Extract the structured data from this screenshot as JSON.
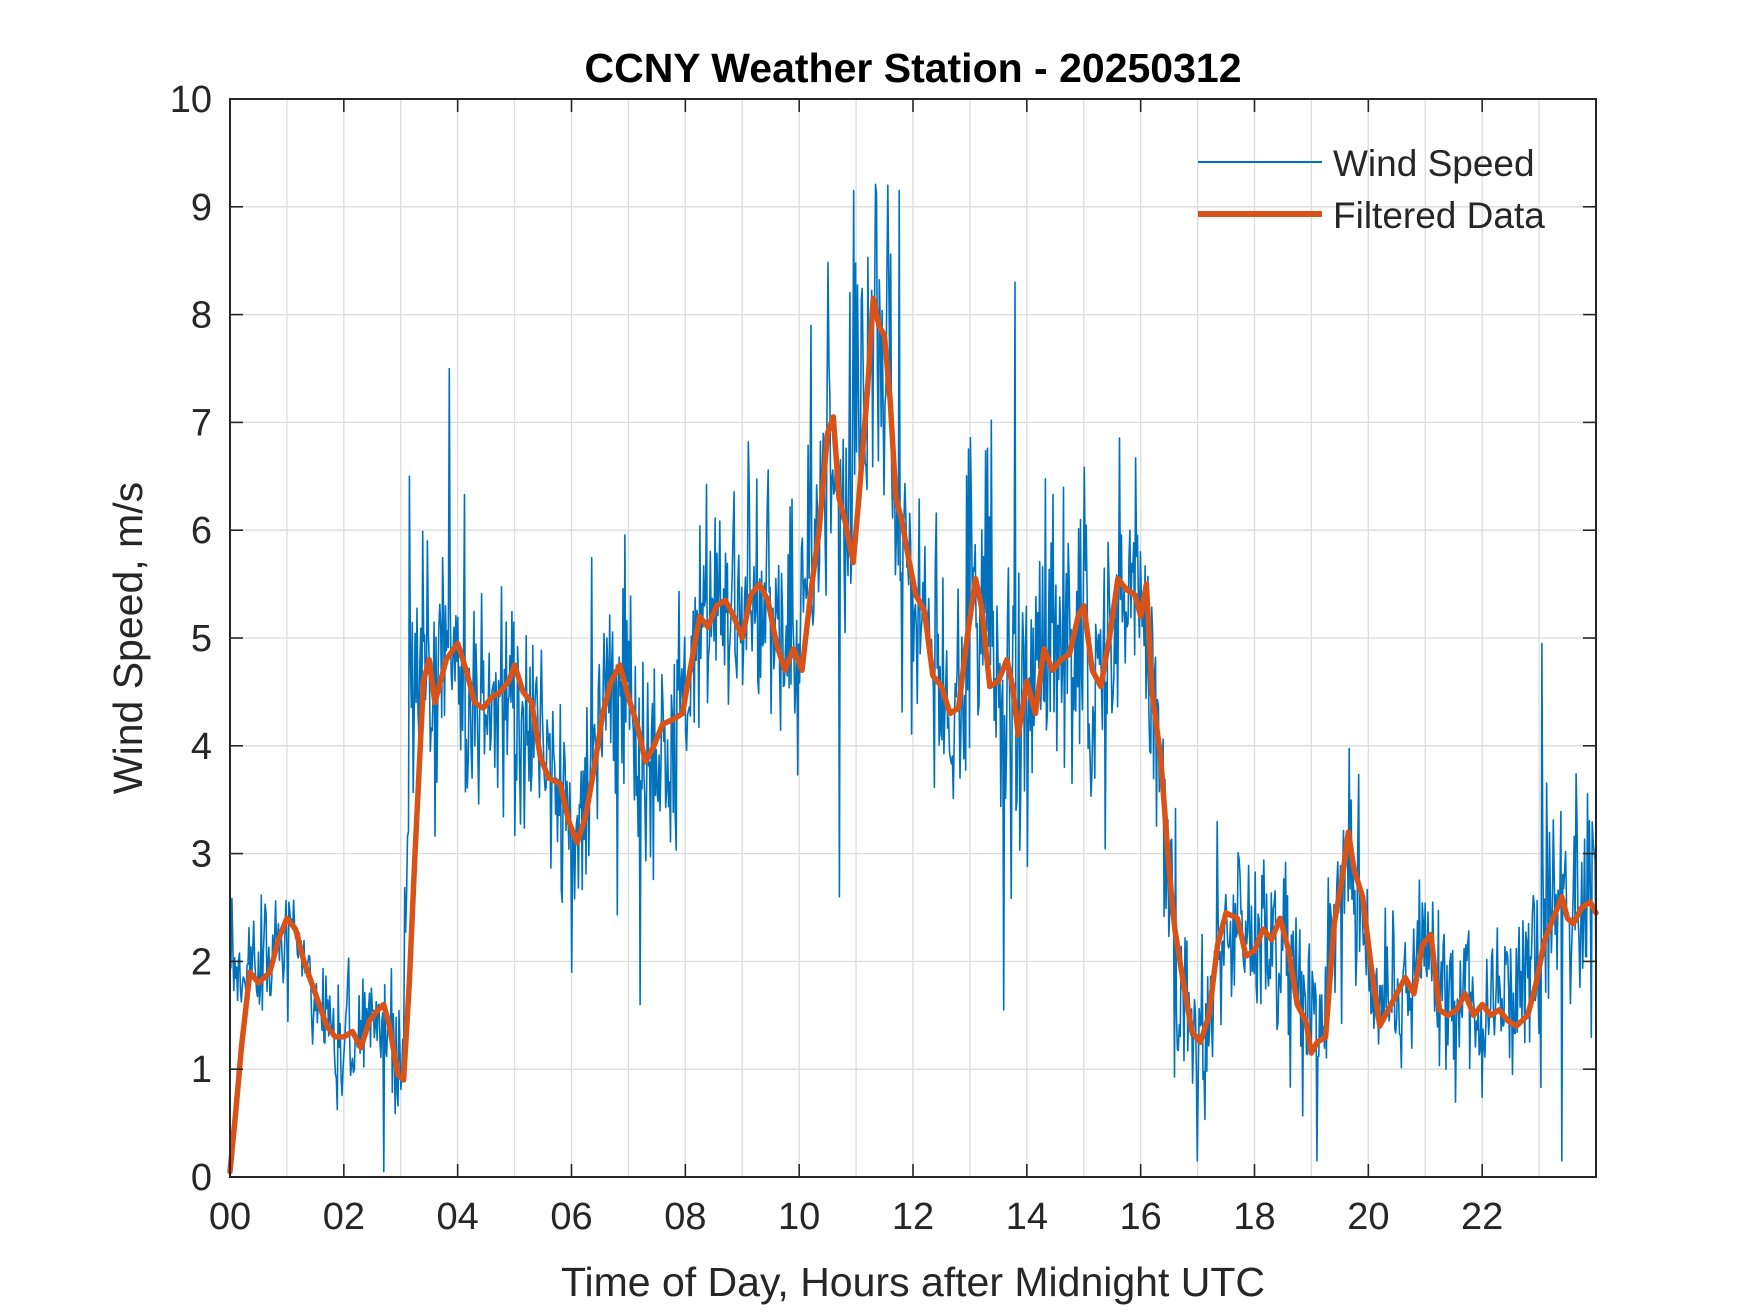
{
  "chart_data": {
    "type": "line",
    "title": "CCNY Weather Station - 20250312",
    "xlabel": "Time of Day, Hours after Midnight UTC",
    "ylabel": "Wind Speed, m/s",
    "xlim": [
      0,
      24
    ],
    "ylim": [
      0,
      10
    ],
    "grid": true,
    "legend_location": "top-right",
    "x_ticks": [
      0,
      2,
      4,
      6,
      8,
      10,
      12,
      14,
      16,
      18,
      20,
      22
    ],
    "x_tick_labels": [
      "00",
      "02",
      "04",
      "06",
      "08",
      "10",
      "12",
      "14",
      "16",
      "18",
      "20",
      "22"
    ],
    "y_ticks": [
      0,
      1,
      2,
      3,
      4,
      5,
      6,
      7,
      8,
      9,
      10
    ],
    "y_tick_labels": [
      "0",
      "1",
      "2",
      "3",
      "4",
      "5",
      "6",
      "7",
      "8",
      "9",
      "10"
    ],
    "series": [
      {
        "name": "Wind Speed",
        "color": "#0072BD",
        "style": "thin-noisy",
        "sample_count": 1440,
        "x": [
          0,
          0.25,
          0.5,
          0.75,
          1,
          1.25,
          1.5,
          1.75,
          2,
          2.25,
          2.5,
          2.75,
          2.95,
          3.05,
          3.2,
          3.4,
          3.6,
          3.8,
          4,
          4.25,
          4.5,
          4.75,
          5,
          5.25,
          5.5,
          5.75,
          6,
          6.15,
          6.3,
          6.5,
          6.75,
          7,
          7.25,
          7.5,
          7.75,
          8,
          8.25,
          8.5,
          8.75,
          9,
          9.25,
          9.5,
          9.75,
          10,
          10.25,
          10.5,
          10.65,
          10.85,
          11,
          11.2,
          11.35,
          11.5,
          11.65,
          11.8,
          12,
          12.25,
          12.5,
          12.75,
          13,
          13.25,
          13.5,
          13.75,
          14,
          14.25,
          14.5,
          14.75,
          15,
          15.25,
          15.5,
          15.75,
          15.95,
          16.1,
          16.3,
          16.5,
          16.75,
          17,
          17.2,
          17.4,
          17.6,
          17.8,
          18,
          18.25,
          18.5,
          18.75,
          19,
          19.2,
          19.4,
          19.6,
          19.75,
          19.9,
          20.1,
          20.3,
          20.5,
          20.75,
          21,
          21.25,
          21.5,
          21.75,
          22,
          22.25,
          22.5,
          22.75,
          23,
          23.25,
          23.5,
          23.75,
          24
        ],
        "values": [
          2.0,
          1.8,
          2.0,
          2.2,
          2.4,
          2.2,
          1.7,
          1.4,
          1.3,
          1.3,
          1.4,
          1.5,
          1.0,
          1.5,
          4.7,
          4.6,
          4.5,
          4.8,
          4.7,
          4.4,
          4.5,
          4.5,
          4.6,
          4.3,
          3.9,
          3.7,
          3.3,
          3.2,
          3.7,
          4.3,
          4.6,
          4.3,
          3.9,
          3.9,
          4.3,
          4.6,
          5.1,
          5.3,
          5.3,
          5.2,
          5.3,
          5.2,
          5.0,
          5.0,
          5.6,
          6.8,
          6.5,
          6.1,
          6.8,
          7.6,
          7.9,
          7.4,
          6.6,
          6.0,
          5.4,
          5.0,
          4.6,
          4.5,
          5.0,
          5.3,
          4.7,
          4.5,
          4.6,
          4.8,
          4.9,
          4.7,
          4.9,
          4.6,
          5.2,
          5.4,
          5.4,
          5.1,
          3.9,
          2.6,
          1.6,
          1.3,
          1.7,
          2.2,
          2.4,
          2.2,
          2.1,
          2.2,
          2.3,
          1.7,
          1.2,
          1.4,
          2.2,
          2.9,
          2.9,
          2.5,
          1.6,
          1.5,
          1.7,
          1.8,
          2.2,
          1.6,
          1.6,
          1.6,
          1.5,
          1.5,
          1.5,
          1.9,
          2.2,
          2.5,
          2.6,
          2.5,
          2.5
        ],
        "noise_amplitude": [
          0.45,
          0.45,
          0.5,
          0.55,
          0.55,
          0.5,
          0.5,
          0.55,
          0.55,
          0.6,
          0.6,
          0.55,
          0.5,
          0.9,
          1.1,
          1.2,
          1.3,
          1.1,
          1.0,
          0.9,
          0.9,
          1.0,
          1.0,
          1.0,
          0.9,
          0.8,
          0.8,
          0.9,
          1.0,
          1.1,
          1.1,
          1.1,
          1.2,
          1.2,
          1.2,
          1.2,
          1.2,
          1.1,
          1.1,
          1.1,
          1.1,
          1.1,
          1.1,
          1.2,
          1.2,
          1.2,
          1.2,
          1.3,
          1.5,
          1.4,
          1.3,
          1.2,
          1.2,
          1.2,
          1.2,
          1.2,
          1.2,
          1.2,
          1.2,
          1.2,
          1.2,
          1.3,
          1.3,
          1.3,
          1.2,
          1.2,
          1.2,
          1.2,
          1.1,
          1.0,
          0.9,
          0.9,
          0.9,
          0.9,
          0.8,
          0.7,
          0.7,
          0.7,
          0.7,
          0.7,
          0.7,
          0.7,
          0.8,
          0.8,
          0.7,
          0.7,
          0.9,
          0.9,
          0.8,
          0.7,
          0.7,
          0.7,
          0.7,
          0.7,
          0.7,
          0.7,
          0.7,
          0.7,
          0.7,
          0.7,
          0.8,
          0.9,
          1.0,
          1.0,
          1.0,
          1.0,
          1.0
        ],
        "peaks": [
          {
            "x": 3.15,
            "y": 6.5
          },
          {
            "x": 3.85,
            "y": 7.5
          },
          {
            "x": 10.2,
            "y": 7.9
          },
          {
            "x": 10.95,
            "y": 9.15
          },
          {
            "x": 11.55,
            "y": 9.2
          },
          {
            "x": 11.75,
            "y": 9.15
          },
          {
            "x": 13.8,
            "y": 8.3
          },
          {
            "x": 23.05,
            "y": 4.95
          }
        ],
        "troughs": [
          {
            "x": 2.7,
            "y": 0.05
          },
          {
            "x": 6.0,
            "y": 1.9
          },
          {
            "x": 7.2,
            "y": 1.6
          },
          {
            "x": 10.7,
            "y": 2.6
          },
          {
            "x": 13.6,
            "y": 1.55
          },
          {
            "x": 17.0,
            "y": 0.15
          },
          {
            "x": 19.1,
            "y": 0.15
          },
          {
            "x": 23.4,
            "y": 0.15
          }
        ]
      },
      {
        "name": "Filtered Data",
        "color": "#D95319",
        "style": "thick-smooth",
        "x": [
          0,
          0.1,
          0.2,
          0.35,
          0.5,
          0.7,
          0.85,
          1.0,
          1.15,
          1.3,
          1.5,
          1.7,
          1.85,
          2.0,
          2.15,
          2.3,
          2.45,
          2.6,
          2.7,
          2.8,
          2.95,
          3.05,
          3.15,
          3.25,
          3.4,
          3.5,
          3.6,
          3.7,
          3.8,
          4.0,
          4.15,
          4.3,
          4.45,
          4.6,
          4.75,
          4.9,
          5.0,
          5.15,
          5.3,
          5.45,
          5.6,
          5.8,
          5.95,
          6.1,
          6.25,
          6.4,
          6.55,
          6.7,
          6.85,
          7.0,
          7.15,
          7.3,
          7.45,
          7.6,
          7.8,
          7.95,
          8.1,
          8.25,
          8.4,
          8.55,
          8.7,
          8.85,
          9.0,
          9.15,
          9.3,
          9.45,
          9.6,
          9.75,
          9.9,
          10.05,
          10.2,
          10.35,
          10.5,
          10.6,
          10.7,
          10.8,
          10.95,
          11.05,
          11.2,
          11.3,
          11.4,
          11.5,
          11.6,
          11.7,
          11.8,
          11.9,
          12.05,
          12.2,
          12.35,
          12.5,
          12.65,
          12.8,
          12.95,
          13.1,
          13.2,
          13.35,
          13.5,
          13.65,
          13.75,
          13.85,
          14.0,
          14.15,
          14.3,
          14.45,
          14.6,
          14.75,
          14.9,
          15.0,
          15.15,
          15.3,
          15.45,
          15.6,
          15.75,
          15.9,
          16.0,
          16.1,
          16.2,
          16.35,
          16.5,
          16.6,
          16.75,
          16.9,
          17.05,
          17.2,
          17.35,
          17.5,
          17.7,
          17.85,
          18.0,
          18.15,
          18.3,
          18.45,
          18.6,
          18.75,
          18.9,
          19.0,
          19.1,
          19.25,
          19.4,
          19.55,
          19.65,
          19.75,
          19.9,
          20.05,
          20.2,
          20.35,
          20.5,
          20.65,
          20.8,
          20.95,
          21.1,
          21.25,
          21.4,
          21.55,
          21.7,
          21.85,
          22.0,
          22.15,
          22.3,
          22.45,
          22.6,
          22.8,
          22.95,
          23.1,
          23.25,
          23.4,
          23.5,
          23.6,
          23.75,
          23.9,
          24.0
        ],
        "values": [
          0.05,
          0.6,
          1.2,
          1.9,
          1.8,
          1.9,
          2.2,
          2.4,
          2.3,
          2.0,
          1.7,
          1.4,
          1.3,
          1.3,
          1.35,
          1.2,
          1.45,
          1.55,
          1.6,
          1.4,
          0.95,
          0.9,
          1.8,
          3.0,
          4.6,
          4.8,
          4.4,
          4.6,
          4.8,
          4.95,
          4.7,
          4.4,
          4.35,
          4.45,
          4.5,
          4.6,
          4.75,
          4.5,
          4.4,
          3.9,
          3.7,
          3.65,
          3.3,
          3.1,
          3.35,
          3.8,
          4.3,
          4.6,
          4.75,
          4.45,
          4.2,
          3.85,
          4.0,
          4.2,
          4.25,
          4.3,
          4.75,
          5.2,
          5.1,
          5.3,
          5.35,
          5.2,
          5.0,
          5.4,
          5.5,
          5.35,
          4.95,
          4.7,
          4.9,
          4.7,
          5.4,
          6.0,
          6.9,
          7.05,
          6.3,
          6.1,
          5.7,
          6.3,
          7.3,
          8.15,
          7.9,
          7.8,
          7.2,
          6.3,
          6.1,
          5.8,
          5.4,
          5.25,
          4.65,
          4.55,
          4.3,
          4.35,
          5.0,
          5.55,
          5.3,
          4.55,
          4.6,
          4.8,
          4.55,
          4.1,
          4.6,
          4.3,
          4.9,
          4.7,
          4.8,
          4.85,
          5.2,
          5.3,
          4.7,
          4.55,
          5.0,
          5.55,
          5.45,
          5.4,
          5.2,
          5.5,
          4.5,
          3.9,
          2.85,
          2.3,
          1.8,
          1.35,
          1.25,
          1.5,
          2.15,
          2.45,
          2.4,
          2.05,
          2.1,
          2.3,
          2.2,
          2.4,
          2.1,
          1.6,
          1.45,
          1.15,
          1.25,
          1.3,
          2.35,
          2.8,
          3.2,
          2.85,
          2.6,
          1.95,
          1.4,
          1.55,
          1.7,
          1.85,
          1.7,
          2.15,
          2.25,
          1.55,
          1.5,
          1.55,
          1.7,
          1.5,
          1.6,
          1.5,
          1.55,
          1.45,
          1.4,
          1.5,
          1.8,
          2.2,
          2.4,
          2.6,
          2.4,
          2.35,
          2.5,
          2.55,
          2.45
        ]
      }
    ]
  }
}
